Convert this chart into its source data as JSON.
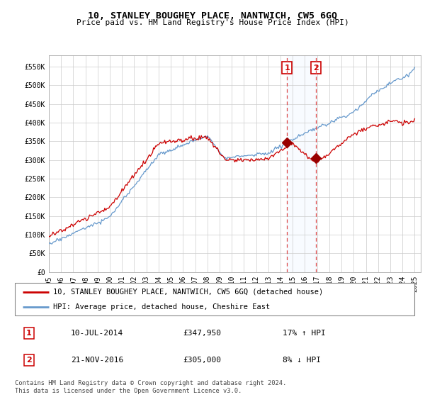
{
  "title": "10, STANLEY BOUGHEY PLACE, NANTWICH, CW5 6GQ",
  "subtitle": "Price paid vs. HM Land Registry's House Price Index (HPI)",
  "ylabel_ticks": [
    "£0",
    "£50K",
    "£100K",
    "£150K",
    "£200K",
    "£250K",
    "£300K",
    "£350K",
    "£400K",
    "£450K",
    "£500K",
    "£550K"
  ],
  "ytick_values": [
    0,
    50000,
    100000,
    150000,
    200000,
    250000,
    300000,
    350000,
    400000,
    450000,
    500000,
    550000
  ],
  "ylim": [
    0,
    580000
  ],
  "sale1_date": "10-JUL-2014",
  "sale1_price": 347950,
  "sale1_hpi_pct": "17% ↑ HPI",
  "sale2_date": "21-NOV-2016",
  "sale2_price": 305000,
  "sale2_hpi_pct": "8% ↓ HPI",
  "legend_line1": "10, STANLEY BOUGHEY PLACE, NANTWICH, CW5 6GQ (detached house)",
  "legend_line2": "HPI: Average price, detached house, Cheshire East",
  "footer": "Contains HM Land Registry data © Crown copyright and database right 2024.\nThis data is licensed under the Open Government Licence v3.0.",
  "line1_color": "#cc0000",
  "line2_color": "#6699cc",
  "sale1_x": 2014.53,
  "sale2_x": 2016.9,
  "background_color": "#ffffff",
  "grid_color": "#cccccc",
  "shade_color": "#ddeeff"
}
